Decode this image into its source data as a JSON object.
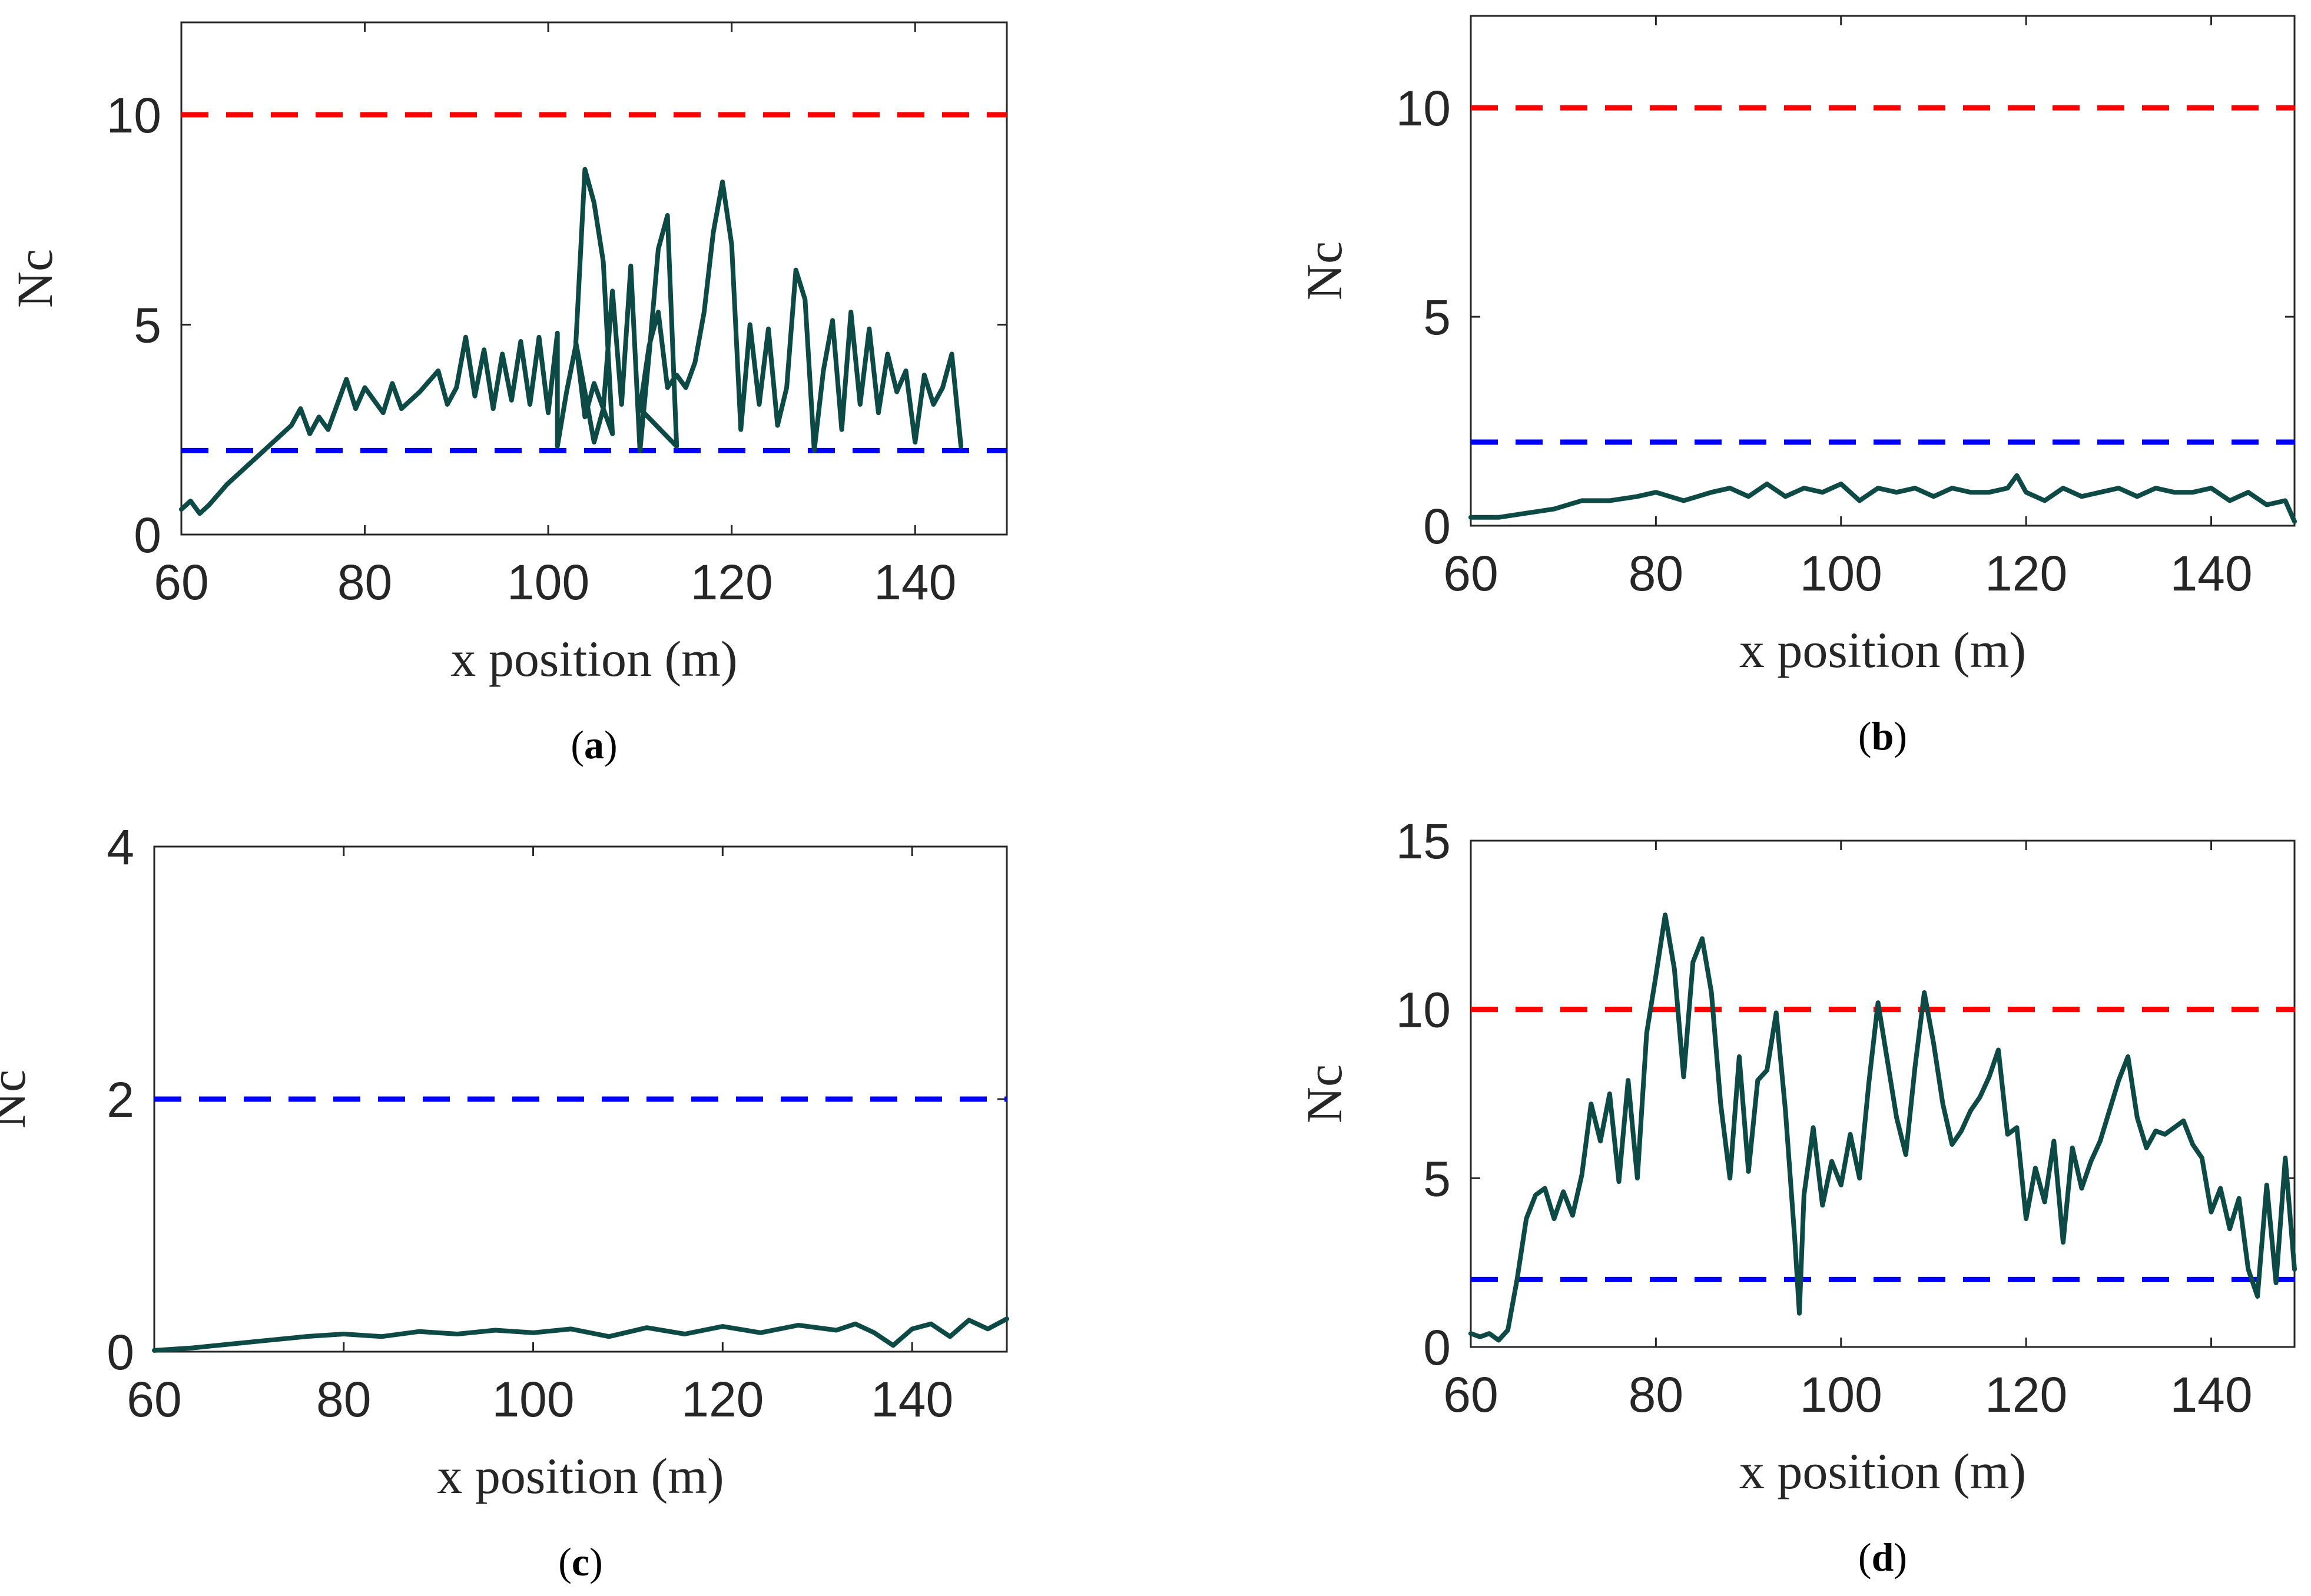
{
  "figure": {
    "background": "#ffffff",
    "line_color": "#0d4a45",
    "upper_color": "#ff0000",
    "lower_color": "#0000ff"
  },
  "chart_data": [
    {
      "id": "a",
      "type": "line",
      "caption": "(a)",
      "xlabel": "x position (m)",
      "ylabel": "Nc",
      "xlim": [
        60,
        150
      ],
      "ylim": [
        0,
        12.2
      ],
      "xticks": [
        60,
        80,
        100,
        120,
        140
      ],
      "yticks": [
        0,
        5,
        10
      ],
      "thresholds": [
        {
          "name": "upper",
          "value": 10,
          "color": "#ff0000"
        },
        {
          "name": "lower",
          "value": 2,
          "color": "#0000ff"
        }
      ],
      "series": [
        {
          "name": "Nc",
          "color": "#0d4a45",
          "x": [
            60,
            61,
            62,
            63,
            65,
            67,
            69,
            70,
            72,
            73,
            74,
            75,
            76,
            78,
            79,
            80,
            82,
            83,
            84,
            86,
            88,
            89,
            90,
            91,
            92,
            93,
            94,
            95,
            96,
            97,
            98,
            99,
            100,
            101,
            101,
            102,
            103,
            104,
            105,
            106,
            107,
            105,
            104,
            103,
            105,
            106,
            107,
            108,
            109,
            110,
            111,
            112,
            113,
            114,
            110,
            111,
            112,
            113,
            114,
            115,
            116,
            117,
            118,
            119,
            120,
            121,
            122,
            123,
            124,
            125,
            126,
            127,
            128,
            129,
            130,
            131,
            132,
            133,
            134,
            135,
            136,
            137,
            138,
            139,
            140,
            141,
            142,
            143,
            144,
            145
          ],
          "y": [
            0.6,
            0.8,
            0.5,
            0.7,
            1.2,
            1.6,
            2.0,
            2.2,
            2.6,
            3.0,
            2.4,
            2.8,
            2.5,
            3.7,
            3.0,
            3.5,
            2.9,
            3.6,
            3.0,
            3.4,
            3.9,
            3.1,
            3.5,
            4.7,
            3.3,
            4.4,
            3.0,
            4.3,
            3.2,
            4.6,
            3.1,
            4.7,
            2.9,
            4.8,
            2.1,
            3.4,
            4.5,
            8.7,
            7.9,
            6.5,
            2.4,
            3.6,
            2.8,
            4.6,
            2.2,
            3.0,
            5.8,
            3.1,
            6.4,
            2.0,
            4.3,
            6.8,
            7.6,
            2.1,
            3.0,
            4.5,
            5.3,
            3.5,
            3.8,
            3.5,
            4.1,
            5.3,
            7.2,
            8.4,
            6.9,
            2.5,
            5.0,
            3.1,
            4.9,
            2.6,
            3.5,
            6.3,
            5.6,
            2.0,
            3.9,
            5.1,
            2.5,
            5.3,
            3.1,
            4.9,
            2.9,
            4.3,
            3.4,
            3.9,
            2.2,
            3.8,
            3.1,
            3.5,
            4.3,
            2.1
          ]
        }
      ]
    },
    {
      "id": "b",
      "type": "line",
      "caption": "(b)",
      "xlabel": "x position (m)",
      "ylabel": "Nc",
      "xlim": [
        60,
        149
      ],
      "ylim": [
        0,
        12.2
      ],
      "xticks": [
        60,
        80,
        100,
        120,
        140
      ],
      "yticks": [
        0,
        5,
        10
      ],
      "thresholds": [
        {
          "name": "upper",
          "value": 10,
          "color": "#ff0000"
        },
        {
          "name": "lower",
          "value": 2,
          "color": "#0000ff"
        }
      ],
      "series": [
        {
          "name": "Nc",
          "color": "#0d4a45",
          "x": [
            60,
            63,
            66,
            69,
            72,
            75,
            78,
            80,
            83,
            86,
            88,
            90,
            92,
            94,
            96,
            98,
            100,
            102,
            104,
            106,
            108,
            110,
            112,
            114,
            116,
            118,
            119,
            120,
            122,
            124,
            126,
            128,
            130,
            132,
            134,
            136,
            138,
            140,
            142,
            144,
            146,
            148,
            149
          ],
          "y": [
            0.2,
            0.2,
            0.3,
            0.4,
            0.6,
            0.6,
            0.7,
            0.8,
            0.6,
            0.8,
            0.9,
            0.7,
            1.0,
            0.7,
            0.9,
            0.8,
            1.0,
            0.6,
            0.9,
            0.8,
            0.9,
            0.7,
            0.9,
            0.8,
            0.8,
            0.9,
            1.2,
            0.8,
            0.6,
            0.9,
            0.7,
            0.8,
            0.9,
            0.7,
            0.9,
            0.8,
            0.8,
            0.9,
            0.6,
            0.8,
            0.5,
            0.6,
            0.1
          ]
        }
      ]
    },
    {
      "id": "c",
      "type": "line",
      "caption": "(c)",
      "xlabel": "x position (m)",
      "ylabel": "Nc",
      "xlim": [
        60,
        150
      ],
      "ylim": [
        0,
        4
      ],
      "xticks": [
        60,
        80,
        100,
        120,
        140
      ],
      "yticks": [
        0,
        2,
        4
      ],
      "thresholds": [
        {
          "name": "lower",
          "value": 2,
          "color": "#0000ff"
        }
      ],
      "series": [
        {
          "name": "Nc",
          "color": "#0d4a45",
          "x": [
            60,
            64,
            68,
            72,
            76,
            80,
            84,
            88,
            92,
            96,
            100,
            104,
            108,
            112,
            116,
            120,
            124,
            128,
            132,
            134,
            136,
            138,
            140,
            142,
            144,
            146,
            148,
            150
          ],
          "y": [
            0.01,
            0.03,
            0.06,
            0.09,
            0.12,
            0.14,
            0.12,
            0.16,
            0.14,
            0.17,
            0.15,
            0.18,
            0.12,
            0.19,
            0.14,
            0.2,
            0.15,
            0.21,
            0.17,
            0.22,
            0.15,
            0.05,
            0.18,
            0.22,
            0.12,
            0.25,
            0.18,
            0.26
          ]
        }
      ]
    },
    {
      "id": "d",
      "type": "line",
      "caption": "(d)",
      "xlabel": "x position (m)",
      "ylabel": "Nc",
      "xlim": [
        60,
        149
      ],
      "ylim": [
        0,
        15
      ],
      "xticks": [
        60,
        80,
        100,
        120,
        140
      ],
      "yticks": [
        0,
        5,
        10,
        15
      ],
      "thresholds": [
        {
          "name": "upper",
          "value": 10,
          "color": "#ff0000"
        },
        {
          "name": "lower",
          "value": 2,
          "color": "#0000ff"
        }
      ],
      "series": [
        {
          "name": "Nc",
          "color": "#0d4a45",
          "x": [
            60,
            61,
            62,
            63,
            64,
            65,
            66,
            67,
            68,
            69,
            70,
            71,
            72,
            73,
            74,
            75,
            76,
            77,
            78,
            79,
            80,
            81,
            82,
            83,
            84,
            85,
            86,
            87,
            88,
            89,
            90,
            91,
            92,
            93,
            94,
            95,
            95.5,
            96,
            97,
            98,
            99,
            100,
            101,
            102,
            103,
            104,
            105,
            106,
            107,
            108,
            109,
            110,
            111,
            112,
            113,
            114,
            115,
            116,
            117,
            118,
            119,
            120,
            121,
            122,
            123,
            124,
            125,
            126,
            127,
            128,
            129,
            130,
            131,
            132,
            133,
            134,
            135,
            136,
            137,
            138,
            139,
            140,
            141,
            142,
            143,
            144,
            145,
            146,
            147,
            148,
            149
          ],
          "y": [
            0.4,
            0.3,
            0.4,
            0.2,
            0.5,
            2.0,
            3.8,
            4.5,
            4.7,
            3.8,
            4.6,
            3.9,
            5.1,
            7.2,
            6.1,
            7.5,
            4.9,
            7.9,
            5.0,
            9.3,
            11.0,
            12.8,
            11.2,
            8.0,
            11.4,
            12.1,
            10.5,
            7.2,
            5.0,
            8.6,
            5.2,
            7.9,
            8.2,
            9.9,
            7.0,
            3.2,
            1.0,
            4.5,
            6.5,
            4.2,
            5.5,
            4.8,
            6.3,
            5.0,
            7.8,
            10.2,
            8.5,
            6.8,
            5.7,
            8.3,
            10.5,
            9.0,
            7.2,
            6.0,
            6.4,
            7.0,
            7.4,
            8.0,
            8.8,
            6.3,
            6.5,
            3.8,
            5.3,
            4.3,
            6.1,
            3.1,
            5.9,
            4.7,
            5.5,
            6.1,
            7.0,
            7.9,
            8.6,
            6.8,
            5.9,
            6.4,
            6.3,
            6.5,
            6.7,
            6.0,
            5.6,
            4.0,
            4.7,
            3.5,
            4.4,
            2.3,
            1.5,
            4.8,
            1.9,
            5.6,
            2.3
          ]
        }
      ]
    }
  ]
}
